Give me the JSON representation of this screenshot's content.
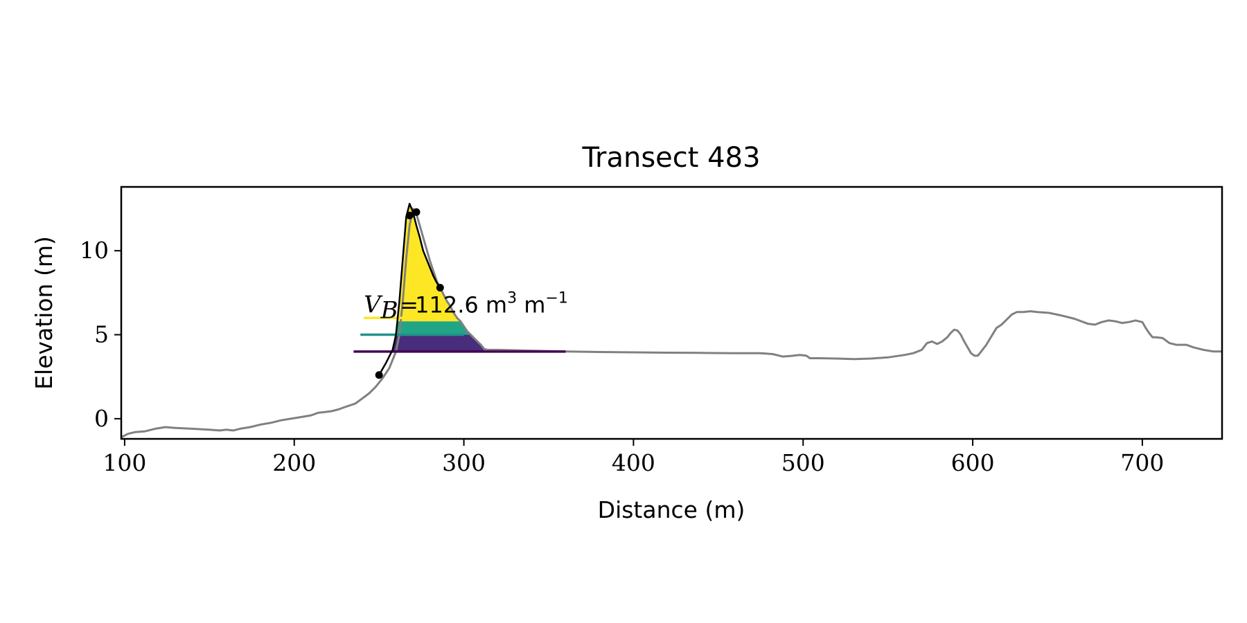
{
  "chart_data": {
    "type": "line",
    "title": "Transect 483",
    "xlabel": "Distance (m)",
    "ylabel": "Elevation (m)",
    "xlim": [
      98,
      747
    ],
    "ylim": [
      -1.2,
      13.8
    ],
    "xticks": [
      100,
      200,
      300,
      400,
      500,
      600,
      700
    ],
    "yticks": [
      0,
      5,
      10
    ],
    "grid": false,
    "legend": "none",
    "colors": {
      "profile": "#808080",
      "dune": "#000000",
      "fill_low": "#472d7b",
      "fill_mid": "#21a585",
      "fill_high": "#fde725",
      "line_low": "#440154",
      "line_mid": "#21918c",
      "line_high": "#fde725"
    },
    "annotation": {
      "symbol": "V",
      "subscript": "B",
      "equals": "=",
      "value": "112.6",
      "unit_m": "m",
      "unit_exp3": "3",
      "unit_exp_neg1": "−1",
      "x": 241,
      "y": 6.0
    },
    "profile": {
      "name": "",
      "x": [
        98,
        102,
        106,
        112,
        118,
        124,
        130,
        140,
        150,
        156,
        160,
        164,
        168,
        174,
        180,
        186,
        192,
        198,
        204,
        210,
        214,
        218,
        222,
        226,
        230,
        236,
        240,
        244,
        248,
        252,
        256,
        258,
        260,
        262,
        264,
        266,
        268,
        270,
        272,
        274,
        276,
        278,
        280,
        282,
        284,
        286,
        288,
        290,
        292,
        294,
        296,
        298,
        300,
        302,
        304,
        306,
        308,
        310,
        312,
        314,
        320,
        340,
        360,
        380,
        400,
        420,
        440,
        460,
        475,
        482,
        488,
        494,
        498,
        502,
        504,
        510,
        520,
        530,
        540,
        550,
        560,
        565,
        570,
        573,
        576,
        579,
        582,
        585,
        587,
        589,
        591,
        593,
        595,
        597,
        599,
        601,
        603,
        605,
        608,
        611,
        614,
        617,
        620,
        623,
        626,
        630,
        634,
        638,
        645,
        652,
        660,
        668,
        672,
        676,
        680,
        684,
        688,
        692,
        696,
        700,
        702,
        704,
        706,
        708,
        712,
        716,
        720,
        726,
        730,
        736,
        742,
        747
      ],
      "y": [
        -1.1,
        -0.9,
        -0.8,
        -0.75,
        -0.6,
        -0.5,
        -0.55,
        -0.6,
        -0.65,
        -0.7,
        -0.65,
        -0.7,
        -0.6,
        -0.5,
        -0.35,
        -0.25,
        -0.1,
        0.0,
        0.1,
        0.2,
        0.35,
        0.4,
        0.45,
        0.55,
        0.7,
        0.9,
        1.2,
        1.5,
        1.9,
        2.4,
        3.0,
        3.5,
        4.0,
        5.0,
        7.0,
        9.5,
        11.5,
        12.5,
        12.2,
        11.5,
        10.8,
        10.1,
        9.4,
        8.8,
        8.2,
        7.8,
        7.4,
        7.0,
        6.7,
        6.3,
        6.0,
        5.8,
        5.5,
        5.2,
        5.0,
        4.8,
        4.6,
        4.4,
        4.15,
        4.1,
        4.1,
        4.05,
        4.0,
        3.97,
        3.95,
        3.93,
        3.92,
        3.9,
        3.9,
        3.85,
        3.7,
        3.75,
        3.8,
        3.75,
        3.6,
        3.6,
        3.58,
        3.55,
        3.58,
        3.65,
        3.8,
        3.9,
        4.1,
        4.5,
        4.6,
        4.45,
        4.6,
        4.85,
        5.1,
        5.3,
        5.25,
        5.0,
        4.6,
        4.25,
        3.9,
        3.75,
        3.75,
        4.0,
        4.4,
        4.9,
        5.4,
        5.6,
        5.9,
        6.2,
        6.35,
        6.35,
        6.4,
        6.35,
        6.3,
        6.15,
        5.95,
        5.65,
        5.6,
        5.75,
        5.85,
        5.8,
        5.7,
        5.75,
        5.85,
        5.75,
        5.4,
        5.1,
        4.85,
        4.85,
        4.8,
        4.5,
        4.4,
        4.4,
        4.25,
        4.1,
        4.0,
        4.0
      ]
    },
    "dune_profile": {
      "name": "",
      "x": [
        250,
        254,
        258,
        260,
        262,
        264,
        266,
        268,
        270,
        272,
        274,
        276,
        278,
        280,
        282,
        284,
        286
      ],
      "y": [
        2.6,
        3.3,
        4.1,
        5.0,
        7.0,
        9.5,
        12.0,
        12.8,
        12.3,
        11.5,
        10.8,
        10.0,
        9.5,
        9.0,
        8.5,
        8.1,
        7.8
      ]
    },
    "dune_points": [
      {
        "x": 250,
        "y": 2.6
      },
      {
        "x": 268,
        "y": 12.1
      },
      {
        "x": 272,
        "y": 12.3
      },
      {
        "x": 286,
        "y": 7.8
      }
    ],
    "levels": [
      {
        "y": 4.0,
        "x_start": 235,
        "x_end": 360
      },
      {
        "y": 5.0,
        "x_start": 239,
        "x_end": 300
      },
      {
        "y": 6.0,
        "x_start": 241,
        "x_end": 295
      }
    ],
    "fill_bands": [
      {
        "y_low": 4.0,
        "y_high": 5.0
      },
      {
        "y_low": 5.0,
        "y_high": 5.8
      },
      {
        "y_low": 5.8,
        "y_high": 13.0
      }
    ]
  }
}
